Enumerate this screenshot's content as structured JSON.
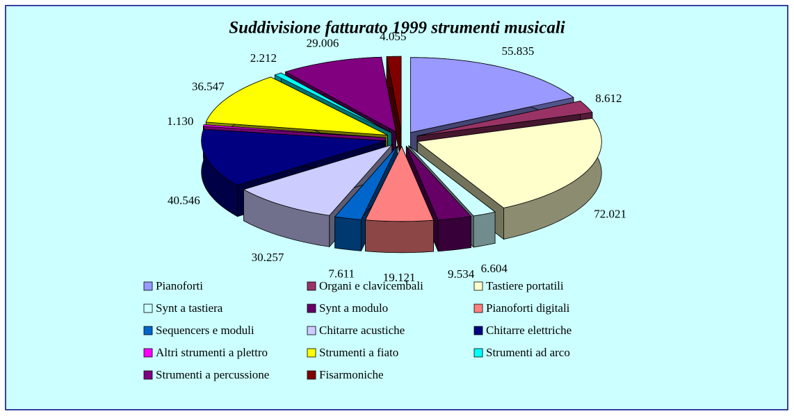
{
  "chart_data": {
    "type": "pie",
    "title": "Suddivisione fatturato 1999 strumenti musicali",
    "categories": [
      "Pianoforti",
      "Organi e clavicembali",
      "Tastiere portatili",
      "Synt a tastiera",
      "Synt a modulo",
      "Pianoforti digitali",
      "Sequencers e moduli",
      "Chitarre acustiche",
      "Chitarre elettriche",
      "Altri strumenti a plettro",
      "Strumenti a fiato",
      "Strumenti ad arco",
      "Strumenti a percussione",
      "Fisarmoniche"
    ],
    "values": [
      55835,
      8612,
      72021,
      6604,
      9534,
      19121,
      7611,
      30257,
      40546,
      1130,
      36547,
      2212,
      29006,
      4055
    ],
    "value_labels": [
      "55.835",
      "8.612",
      "72.021",
      "6.604",
      "9.534",
      "19.121",
      "7.611",
      "30.257",
      "40.546",
      "1.130",
      "36.547",
      "2.212",
      "29.006",
      "4.055"
    ],
    "colors": [
      "#9999ff",
      "#993366",
      "#ffffcc",
      "#ccffff",
      "#660066",
      "#ff8080",
      "#0066cc",
      "#ccccff",
      "#000080",
      "#ff00ff",
      "#ffff00",
      "#00ffff",
      "#800080",
      "#800000"
    ],
    "legend": "bottom"
  }
}
